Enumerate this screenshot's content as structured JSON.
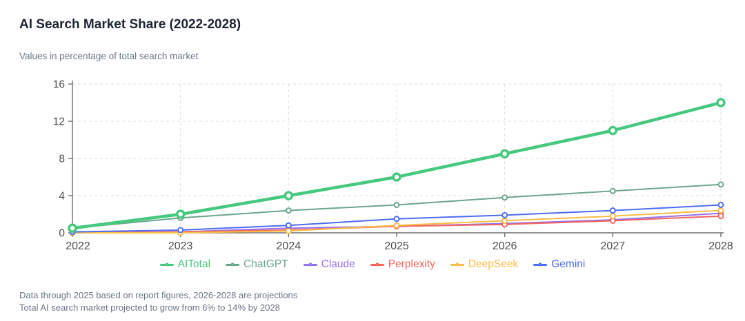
{
  "header": {
    "title": "AI Search Market Share (2022-2028)",
    "subtitle": "Values in percentage of total search market"
  },
  "chart_data": {
    "type": "line",
    "x": [
      "2022",
      "2023",
      "2024",
      "2025",
      "2026",
      "2027",
      "2028"
    ],
    "series": [
      {
        "name": "AITotal",
        "color": "#47c87f",
        "emphasis": true,
        "values": [
          0.5,
          2.0,
          4.0,
          6.0,
          8.5,
          11.0,
          14.0
        ]
      },
      {
        "name": "ChatGPT",
        "color": "#6ba68b",
        "emphasis": false,
        "values": [
          0.5,
          1.6,
          2.4,
          3.0,
          3.8,
          4.5,
          5.2
        ]
      },
      {
        "name": "Claude",
        "color": "#9572ee",
        "emphasis": false,
        "values": [
          0.0,
          0.1,
          0.5,
          0.7,
          1.0,
          1.4,
          2.1
        ]
      },
      {
        "name": "Perplexity",
        "color": "#f4655e",
        "emphasis": false,
        "values": [
          0.0,
          0.1,
          0.3,
          0.7,
          0.9,
          1.3,
          1.8
        ]
      },
      {
        "name": "DeepSeek",
        "color": "#f8bd45",
        "emphasis": false,
        "values": [
          0.0,
          0.0,
          0.2,
          0.8,
          1.3,
          1.8,
          2.4
        ]
      },
      {
        "name": "Gemini",
        "color": "#4e6cf2",
        "emphasis": false,
        "values": [
          0.1,
          0.3,
          0.8,
          1.5,
          1.9,
          2.4,
          3.0
        ]
      }
    ],
    "yticks": [
      0,
      4,
      8,
      12,
      16
    ],
    "ylim": [
      0,
      16
    ],
    "grid": true,
    "grid_style": "dashed",
    "legend_position": "bottom",
    "axis_color": "#6e6e6e",
    "grid_color": "#dcdcdc",
    "tick_label_color": "#4d4d4d",
    "marker": "open-circle"
  },
  "footer": {
    "note1": "Data through 2025 based on report figures, 2026-2028 are projections",
    "note2": "Total AI search market projected to grow from 6% to 14% by 2028"
  }
}
